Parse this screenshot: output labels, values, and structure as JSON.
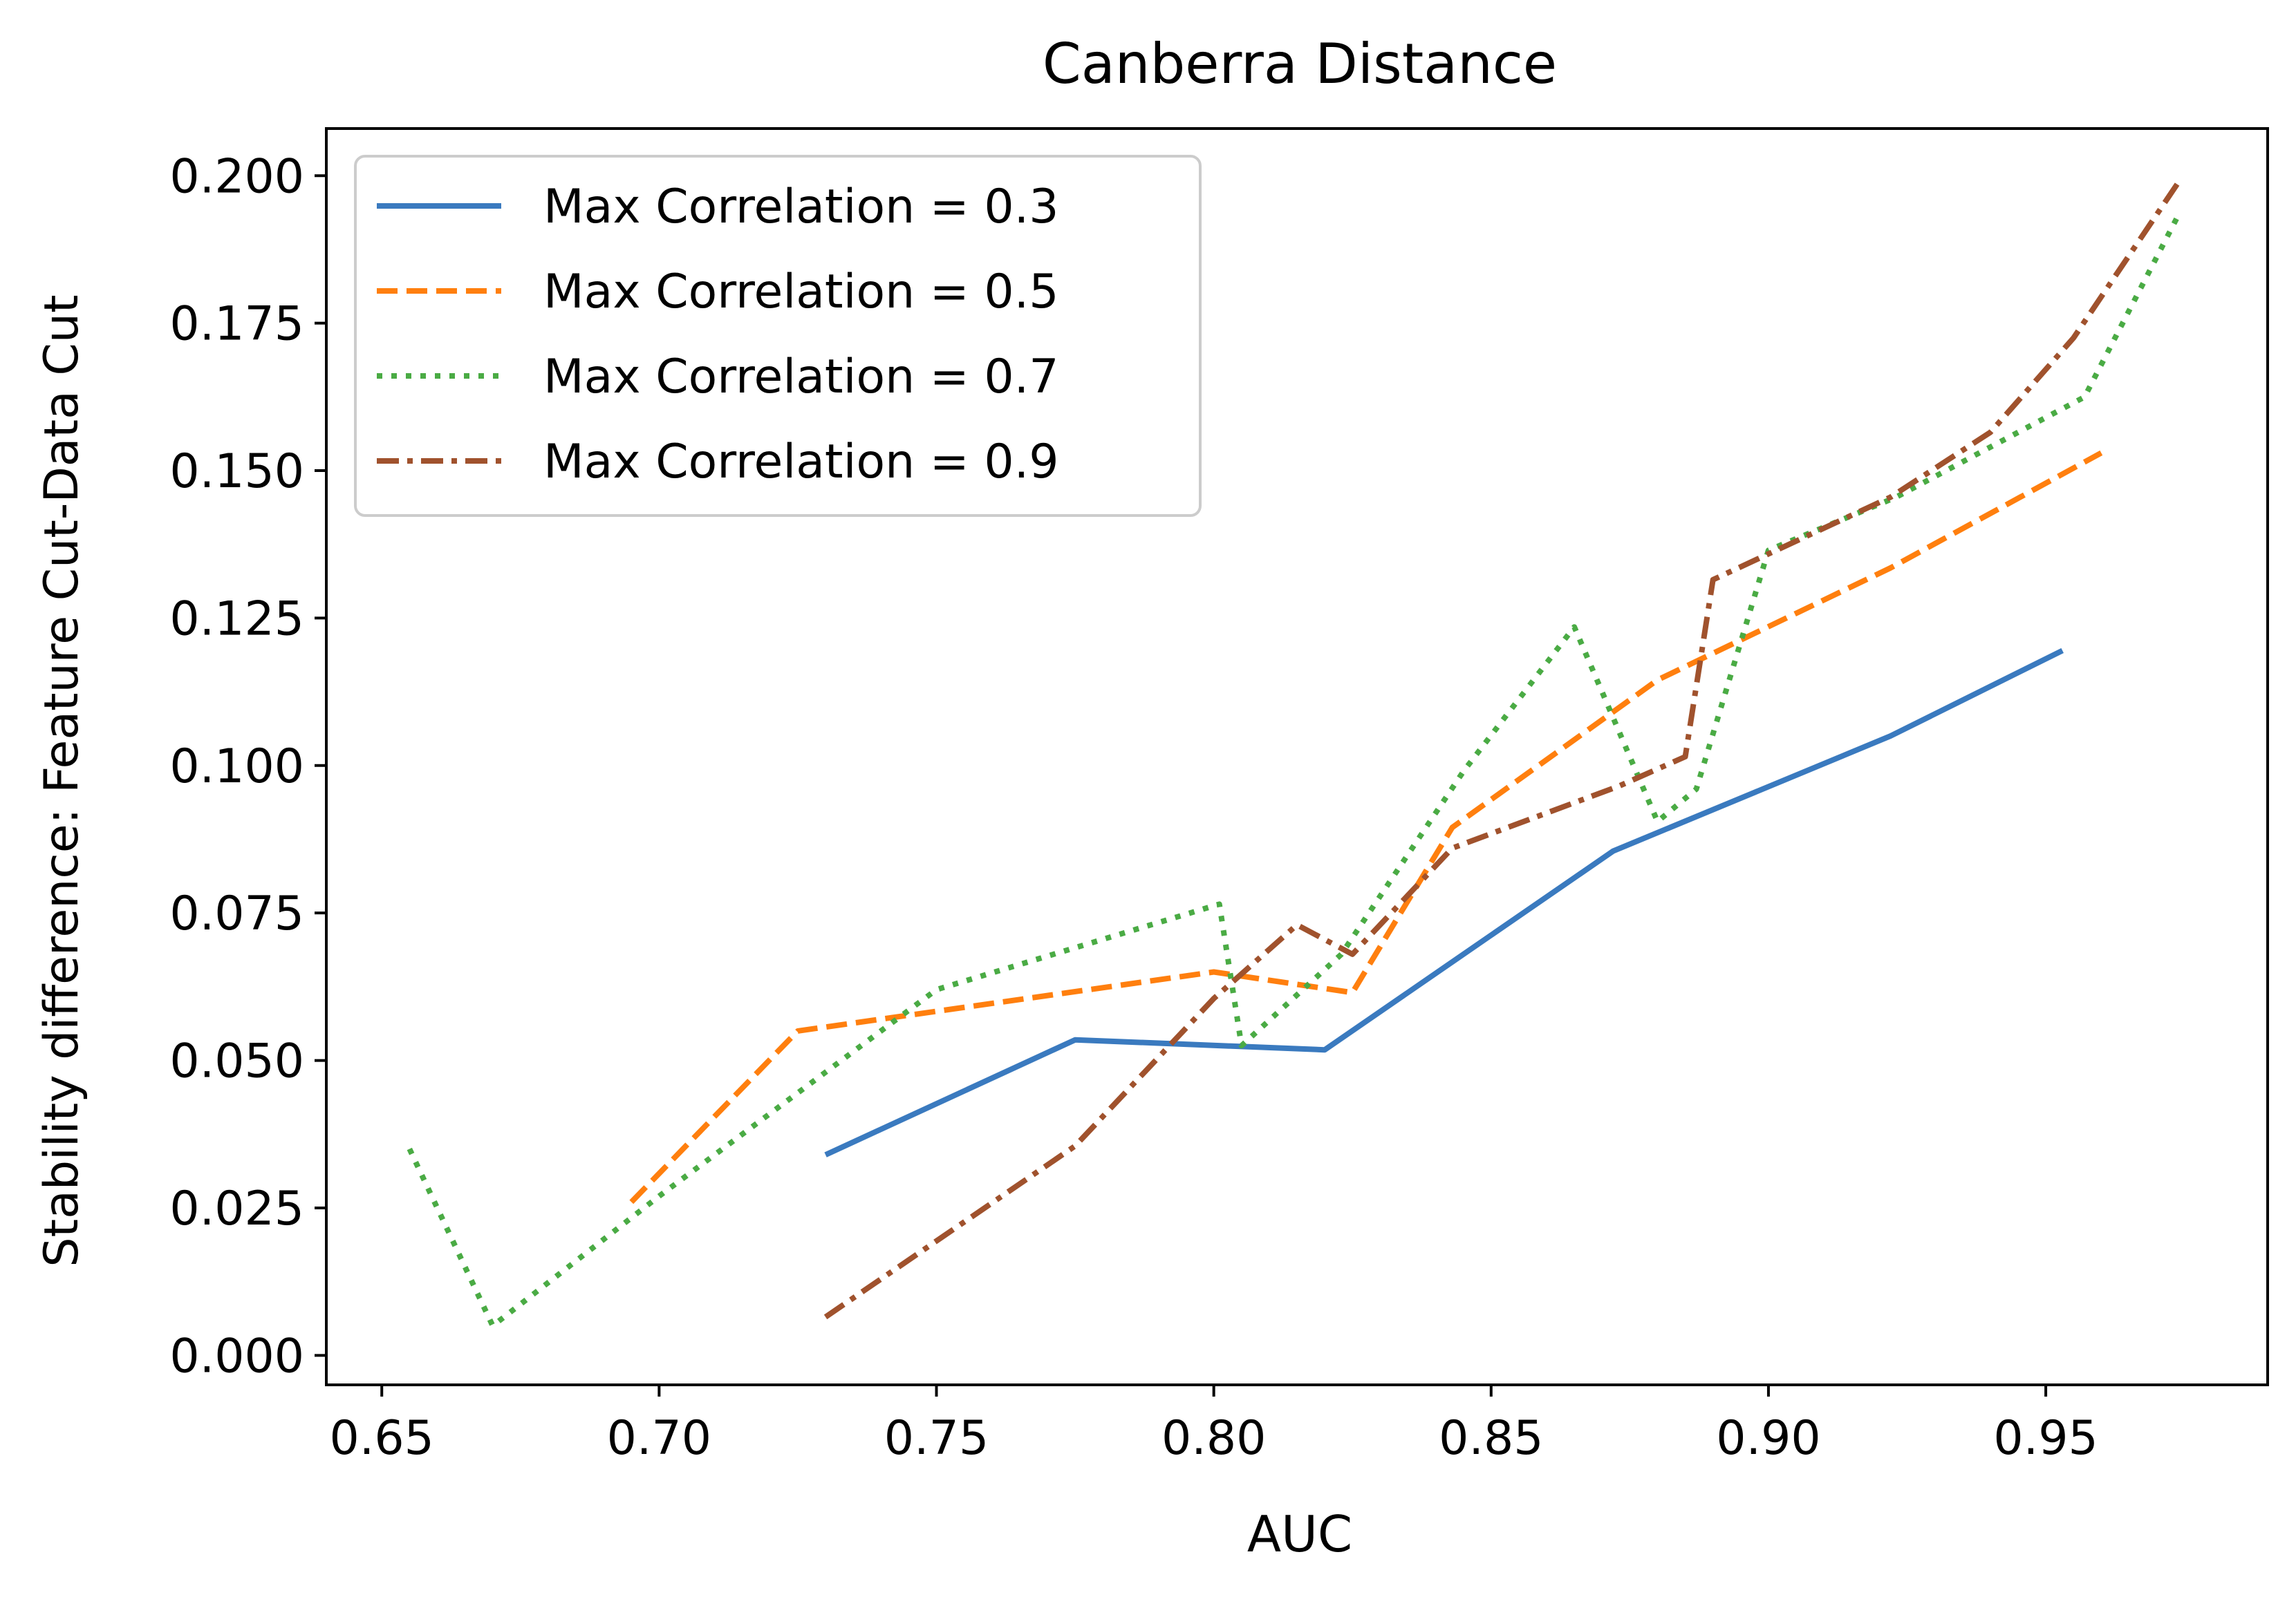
{
  "chart_data": {
    "type": "line",
    "title": "Canberra Distance",
    "xlabel": "AUC",
    "ylabel": "Stability difference: Feature Cut-Data Cut",
    "xlim": [
      0.64,
      0.99
    ],
    "ylim": [
      -0.005,
      0.208
    ],
    "xticks": [
      0.65,
      0.7,
      0.75,
      0.8,
      0.85,
      0.9,
      0.95
    ],
    "xtick_labels": [
      "0.65",
      "0.70",
      "0.75",
      "0.80",
      "0.85",
      "0.90",
      "0.95"
    ],
    "yticks": [
      0.0,
      0.025,
      0.05,
      0.075,
      0.1,
      0.125,
      0.15,
      0.175,
      0.2
    ],
    "ytick_labels": [
      "0.000",
      "0.025",
      "0.050",
      "0.075",
      "0.100",
      "0.125",
      "0.150",
      "0.175",
      "0.200"
    ],
    "grid": false,
    "legend_position": "top-left",
    "series": [
      {
        "name": "Max Correlation = 0.3",
        "color": "#3a7abf",
        "style": "solid",
        "x": [
          0.73,
          0.775,
          0.82,
          0.872,
          0.922,
          0.953
        ],
        "y": [
          0.034,
          0.0535,
          0.0518,
          0.0855,
          0.105,
          0.1195
        ]
      },
      {
        "name": "Max Correlation = 0.5",
        "color": "#ff7f0e",
        "style": "dashed",
        "x": [
          0.695,
          0.725,
          0.8,
          0.825,
          0.843,
          0.88,
          0.922,
          0.96
        ],
        "y": [
          0.026,
          0.055,
          0.065,
          0.0615,
          0.0895,
          0.1145,
          0.1335,
          0.153
        ]
      },
      {
        "name": "Max Correlation = 0.7",
        "color": "#4aab44",
        "style": "dotted",
        "x": [
          0.655,
          0.67,
          0.7,
          0.73,
          0.75,
          0.801,
          0.805,
          0.823,
          0.845,
          0.865,
          0.88,
          0.887,
          0.9,
          0.923,
          0.957,
          0.974
        ],
        "y": [
          0.035,
          0.005,
          0.027,
          0.048,
          0.062,
          0.0765,
          0.0525,
          0.068,
          0.099,
          0.1235,
          0.0905,
          0.096,
          0.1365,
          0.1455,
          0.1625,
          0.1935
        ]
      },
      {
        "name": "Max Correlation = 0.9",
        "color": "#a0522d",
        "style": "dashdot",
        "x": [
          0.73,
          0.775,
          0.8,
          0.815,
          0.825,
          0.843,
          0.873,
          0.885,
          0.89,
          0.922,
          0.94,
          0.955,
          0.974
        ],
        "y": [
          0.0065,
          0.0355,
          0.0605,
          0.073,
          0.068,
          0.086,
          0.0965,
          0.1015,
          0.1315,
          0.1455,
          0.1565,
          0.1725,
          0.199
        ]
      }
    ]
  }
}
